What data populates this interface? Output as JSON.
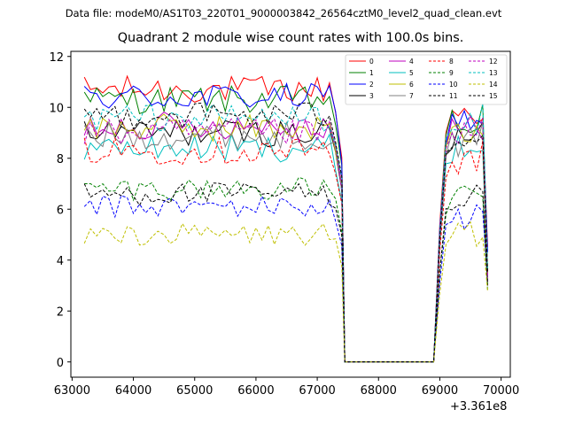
{
  "figure": {
    "suptitle": "Data file: modeM0/AS1T03_220T01_9000003842_26564cztM0_level2_quad_clean.evt",
    "title": "Quadrant 2 module wise count rates with 100.0s bins.",
    "x_offset_label": "+3.361e8"
  },
  "chart_data": {
    "type": "line",
    "title": "Quadrant 2 module wise count rates with 100.0s bins.",
    "xlabel": "",
    "ylabel": "",
    "xlim": [
      62980,
      70150
    ],
    "ylim": [
      -0.6,
      12.2
    ],
    "x_ticks": [
      63000,
      64000,
      65000,
      66000,
      67000,
      68000,
      69000,
      70000
    ],
    "y_ticks": [
      0,
      2,
      4,
      6,
      8,
      10,
      12
    ],
    "x_offset": 336100000,
    "bin_seconds": 100,
    "legend": {
      "placement": "top-right",
      "columns": 4
    },
    "gap_window": [
      67450,
      68900
    ],
    "series": [
      {
        "name": "0",
        "color": "#ff0000",
        "dash": "solid",
        "base": 10.7,
        "post": 9.8,
        "low": 4.5
      },
      {
        "name": "1",
        "color": "#008000",
        "dash": "solid",
        "base": 10.3,
        "post": 9.3,
        "low": 3.5
      },
      {
        "name": "2",
        "color": "#0000ff",
        "dash": "solid",
        "base": 10.4,
        "post": 9.5,
        "low": 4.3
      },
      {
        "name": "3",
        "color": "#000000",
        "dash": "solid",
        "base": 9.0,
        "post": 8.7,
        "low": 3.0
      },
      {
        "name": "4",
        "color": "#bf00bf",
        "dash": "solid",
        "base": 9.3,
        "post": 9.1,
        "low": 3.4
      },
      {
        "name": "5",
        "color": "#00bfbf",
        "dash": "solid",
        "base": 8.4,
        "post": 8.4,
        "low": 3.0
      },
      {
        "name": "6",
        "color": "#bfbf00",
        "dash": "solid",
        "base": 9.2,
        "post": 8.9,
        "low": 3.5
      },
      {
        "name": "7",
        "color": "#808080",
        "dash": "solid",
        "base": 8.9,
        "post": 8.6,
        "low": 3.2
      },
      {
        "name": "8",
        "color": "#ff0000",
        "dash": "dashed",
        "base": 8.3,
        "post": 7.9,
        "low": 3.0
      },
      {
        "name": "9",
        "color": "#008000",
        "dash": "dashed",
        "base": 6.8,
        "post": 6.4,
        "low": 2.8
      },
      {
        "name": "10",
        "color": "#0000ff",
        "dash": "dashed",
        "base": 6.1,
        "post": 5.7,
        "low": 3.2
      },
      {
        "name": "11",
        "color": "#000000",
        "dash": "dashed",
        "base": 6.6,
        "post": 6.5,
        "low": 3.0
      },
      {
        "name": "12",
        "color": "#bf00bf",
        "dash": "dashed",
        "base": 9.0,
        "post": 8.9,
        "low": 3.3
      },
      {
        "name": "13",
        "color": "#00bfbf",
        "dash": "dashed",
        "base": 9.6,
        "post": 9.2,
        "low": 3.6
      },
      {
        "name": "14",
        "color": "#bfbf00",
        "dash": "dashed",
        "base": 5.0,
        "post": 4.9,
        "low": 2.8
      },
      {
        "name": "15",
        "color": "#000000",
        "dash": "dashed",
        "base": 9.7,
        "post": 8.9,
        "low": 3.5
      }
    ]
  }
}
